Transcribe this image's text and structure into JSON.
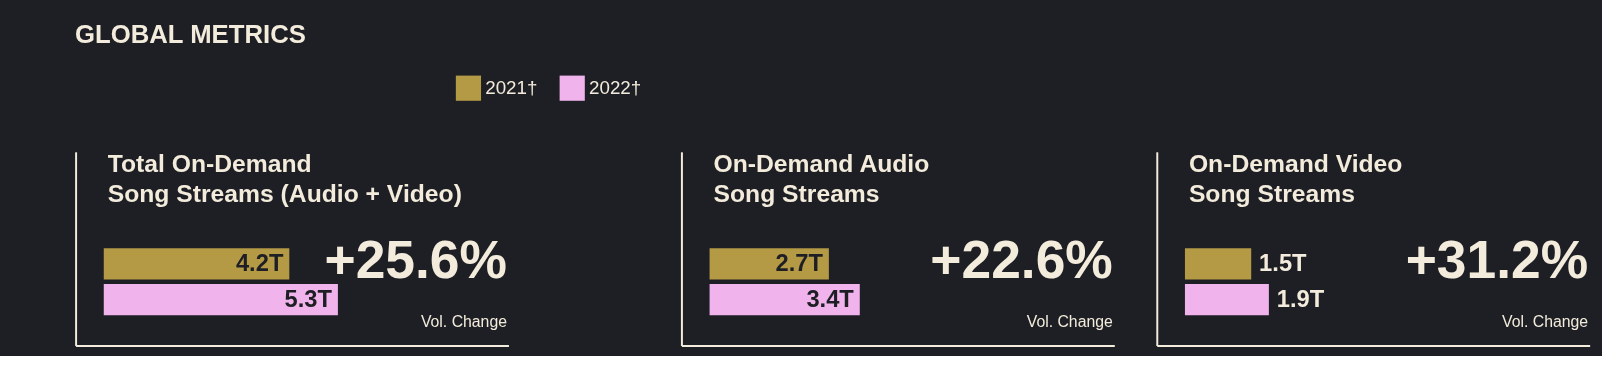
{
  "chart_data": [
    {
      "type": "bar",
      "orientation": "horizontal",
      "title": "GLOBAL METRICS",
      "subtitle": "Total On-Demand\nSong Streams (Audio + Video)",
      "categories": [
        null
      ],
      "tick_labels": false,
      "legend": "top",
      "series": [
        {
          "name": "2021†",
          "color": "#b59a45",
          "values": [
            4.2
          ],
          "value_labels": [
            "4.2T"
          ]
        },
        {
          "name": "2022†",
          "color": "#f0b3ec",
          "values": [
            5.3
          ],
          "value_labels": [
            "5.3T"
          ]
        }
      ],
      "annotations": [
        "+25.6%",
        "Vol. Change"
      ]
    },
    {
      "type": "bar",
      "orientation": "horizontal",
      "title": "On-Demand Audio\nSong Streams",
      "categories": [
        null
      ],
      "tick_labels": false,
      "series": [
        {
          "color": "#b59a45",
          "values": [
            2.7
          ],
          "value_labels": [
            "2.7T"
          ]
        },
        {
          "color": "#f0b3ec",
          "values": [
            3.4
          ],
          "value_labels": [
            "3.4T"
          ]
        }
      ],
      "annotations": [
        "+22.6%",
        "Vol. Change"
      ]
    },
    {
      "type": "bar",
      "orientation": "horizontal",
      "title": "On-Demand Video\nSong Streams",
      "categories": [
        null
      ],
      "tick_labels": false,
      "series": [
        {
          "color": "#b59a45",
          "values": [
            1.5
          ],
          "value_labels": [
            "1.5T"
          ]
        },
        {
          "color": "#f0b3ec",
          "values": [
            1.9
          ],
          "value_labels": [
            "1.9T"
          ]
        }
      ],
      "annotations": [
        "+31.2%",
        "Vol. Change"
      ]
    }
  ]
}
